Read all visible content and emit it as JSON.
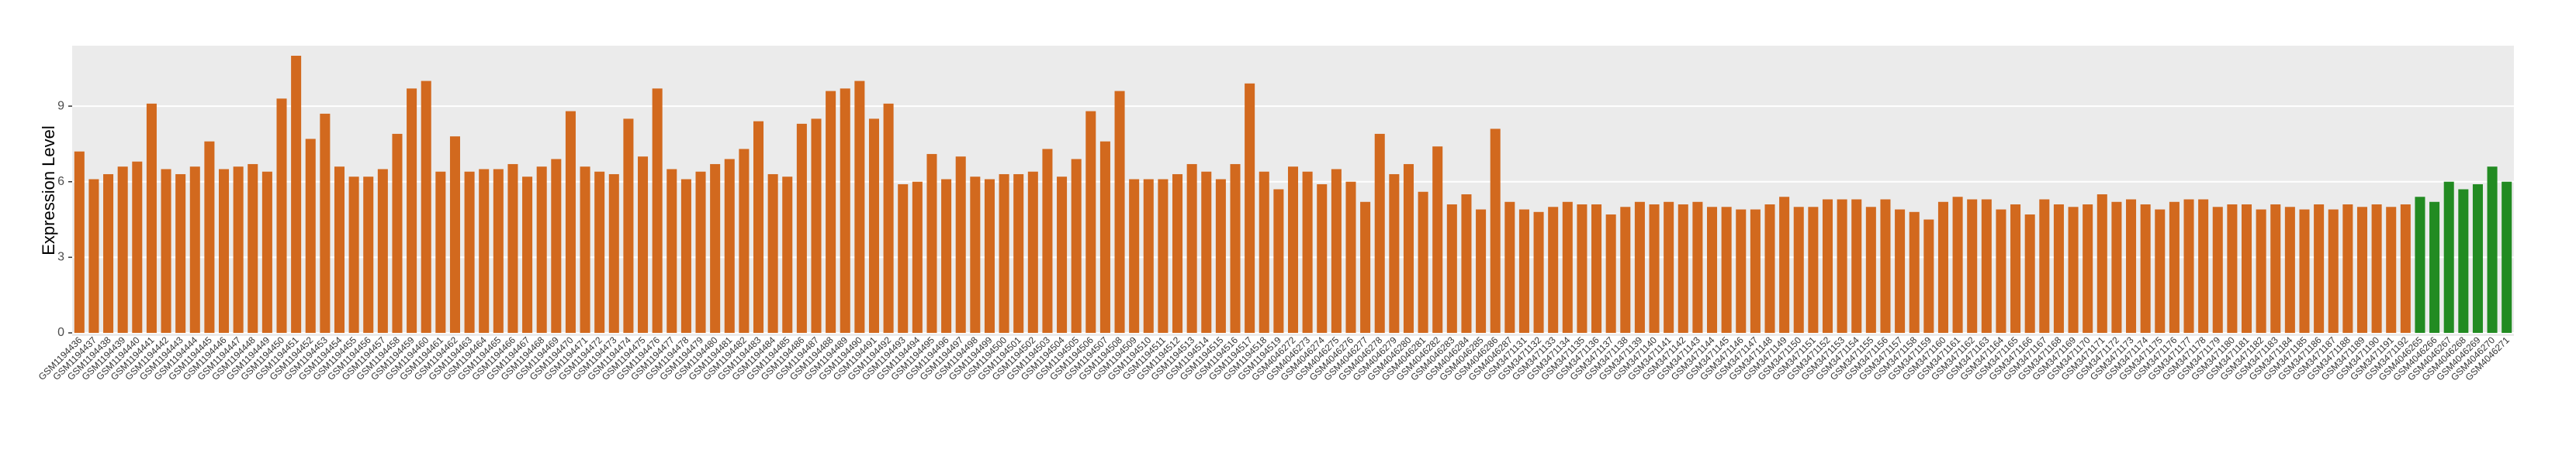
{
  "chart_data": {
    "type": "bar",
    "y_label": "Expression Level",
    "categories": [
      "GSM1194436",
      "GSM1194437",
      "GSM1194438",
      "GSM1194439",
      "GSM1194440",
      "GSM1194441",
      "GSM1194442",
      "GSM1194443",
      "GSM1194444",
      "GSM1194445",
      "GSM1194446",
      "GSM1194447",
      "GSM1194448",
      "GSM1194449",
      "GSM1194450",
      "GSM1194451",
      "GSM1194452",
      "GSM1194453",
      "GSM1194454",
      "GSM1194455",
      "GSM1194456",
      "GSM1194457",
      "GSM1194458",
      "GSM1194459",
      "GSM1194460",
      "GSM1194461",
      "GSM1194462",
      "GSM1194463",
      "GSM1194464",
      "GSM1194465",
      "GSM1194466",
      "GSM1194467",
      "GSM1194468",
      "GSM1194469",
      "GSM1194470",
      "GSM1194471",
      "GSM1194472",
      "GSM1194473",
      "GSM1194474",
      "GSM1194475",
      "GSM1194476",
      "GSM1194477",
      "GSM1194478",
      "GSM1194479",
      "GSM1194480",
      "GSM1194481",
      "GSM1194482",
      "GSM1194483",
      "GSM1194484",
      "GSM1194485",
      "GSM1194486",
      "GSM1194487",
      "GSM1194488",
      "GSM1194489",
      "GSM1194490",
      "GSM1194491",
      "GSM1194492",
      "GSM1194493",
      "GSM1194494",
      "GSM1194495",
      "GSM1194496",
      "GSM1194497",
      "GSM1194498",
      "GSM1194499",
      "GSM1194500",
      "GSM1194501",
      "GSM1194502",
      "GSM1194503",
      "GSM1194504",
      "GSM1194505",
      "GSM1194506",
      "GSM1194507",
      "GSM1194508",
      "GSM1194509",
      "GSM1194510",
      "GSM1194511",
      "GSM1194512",
      "GSM1194513",
      "GSM1194514",
      "GSM1194515",
      "GSM1194516",
      "GSM1194517",
      "GSM1194518",
      "GSM1194519",
      "GSM4046272",
      "GSM4046273",
      "GSM4046274",
      "GSM4046275",
      "GSM4046276",
      "GSM4046277",
      "GSM4046278",
      "GSM4046279",
      "GSM4046280",
      "GSM4046281",
      "GSM4046282",
      "GSM4046283",
      "GSM4046284",
      "GSM4046285",
      "GSM4046286",
      "GSM4046287",
      "GSM3471131",
      "GSM3471132",
      "GSM3471133",
      "GSM3471134",
      "GSM3471135",
      "GSM3471136",
      "GSM3471137",
      "GSM3471138",
      "GSM3471139",
      "GSM3471140",
      "GSM3471141",
      "GSM3471142",
      "GSM3471143",
      "GSM3471144",
      "GSM3471145",
      "GSM3471146",
      "GSM3471147",
      "GSM3471148",
      "GSM3471149",
      "GSM3471150",
      "GSM3471151",
      "GSM3471152",
      "GSM3471153",
      "GSM3471154",
      "GSM3471155",
      "GSM3471156",
      "GSM3471157",
      "GSM3471158",
      "GSM3471159",
      "GSM3471160",
      "GSM3471161",
      "GSM3471162",
      "GSM3471163",
      "GSM3471164",
      "GSM3471165",
      "GSM3471166",
      "GSM3471167",
      "GSM3471168",
      "GSM3471169",
      "GSM3471170",
      "GSM3471171",
      "GSM3471172",
      "GSM3471173",
      "GSM3471174",
      "GSM3471175",
      "GSM3471176",
      "GSM3471177",
      "GSM3471178",
      "GSM3471179",
      "GSM3471180",
      "GSM3471181",
      "GSM3471182",
      "GSM3471183",
      "GSM3471184",
      "GSM3471185",
      "GSM3471186",
      "GSM3471187",
      "GSM3471188",
      "GSM3471189",
      "GSM3471190",
      "GSM3471191",
      "GSM3471192",
      "GSM4046265",
      "GSM4046266",
      "GSM4046267",
      "GSM4046268",
      "GSM4046269",
      "GSM4046270",
      "GSM4046271"
    ],
    "values": [
      7.2,
      6.1,
      6.3,
      6.6,
      6.8,
      9.1,
      6.5,
      6.3,
      6.6,
      7.6,
      6.5,
      6.6,
      6.7,
      6.4,
      9.3,
      11.0,
      7.7,
      8.7,
      6.6,
      6.2,
      6.2,
      6.5,
      7.9,
      9.7,
      10.0,
      6.4,
      7.8,
      6.4,
      6.5,
      6.5,
      6.7,
      6.2,
      6.6,
      6.9,
      8.8,
      6.6,
      6.4,
      6.3,
      8.5,
      7.0,
      9.7,
      6.5,
      6.1,
      6.4,
      6.7,
      6.9,
      7.3,
      8.4,
      6.3,
      6.2,
      8.3,
      8.5,
      9.6,
      9.7,
      10.0,
      8.5,
      9.1,
      5.9,
      6.0,
      7.1,
      6.1,
      7.0,
      6.2,
      6.1,
      6.3,
      6.3,
      6.4,
      7.3,
      6.2,
      6.9,
      8.8,
      7.6,
      9.6,
      6.1,
      6.1,
      6.1,
      6.3,
      6.7,
      6.4,
      6.1,
      6.7,
      9.9,
      6.4,
      5.7,
      6.6,
      6.4,
      5.9,
      6.5,
      6.0,
      5.2,
      7.9,
      6.3,
      6.7,
      5.6,
      7.4,
      5.1,
      5.5,
      4.9,
      8.1,
      5.2,
      4.9,
      4.8,
      5.0,
      5.2,
      5.1,
      5.1,
      4.7,
      5.0,
      5.2,
      5.1,
      5.2,
      5.1,
      5.2,
      5.0,
      5.0,
      4.9,
      4.9,
      5.1,
      5.4,
      5.0,
      5.0,
      5.3,
      5.3,
      5.3,
      5.0,
      5.3,
      4.9,
      4.8,
      4.5,
      5.2,
      5.4,
      5.3,
      5.3,
      4.9,
      5.1,
      4.7,
      5.3,
      5.1,
      5.0,
      5.1,
      5.5,
      5.2,
      5.3,
      5.1,
      4.9,
      5.2,
      5.3,
      5.3,
      5.0,
      5.1,
      5.1,
      4.9,
      5.1,
      5.0,
      4.9,
      5.1,
      4.9,
      5.1,
      5.0,
      5.1,
      5.0,
      5.1,
      5.4,
      5.2,
      6.0,
      5.7,
      5.9,
      6.6,
      6.0
    ],
    "color": "#d2691e",
    "highlight_color": "#228b22",
    "highlight_count": 7,
    "ylim": [
      0,
      11.4
    ],
    "yticks": [
      0,
      3,
      6,
      9
    ],
    "grid": true
  }
}
